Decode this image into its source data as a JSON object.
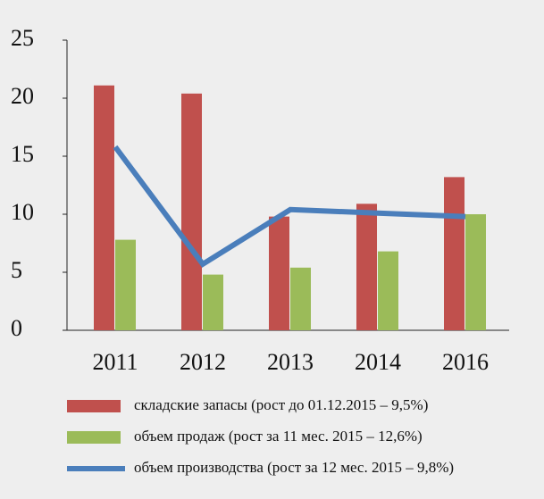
{
  "chart_data": {
    "type": "bar_line",
    "categories": [
      "2011",
      "2012",
      "2013",
      "2014",
      "2016"
    ],
    "series": [
      {
        "name": "складские запасы (рост до 01.12.2015 – 9,5%)",
        "color": "#c0504d",
        "kind": "bar",
        "values": [
          21.1,
          20.4,
          9.8,
          10.9,
          13.2
        ]
      },
      {
        "name": "объем продаж (рост за 11 мес. 2015 – 12,6%)",
        "color": "#9bbb59",
        "kind": "bar",
        "values": [
          7.8,
          4.8,
          5.4,
          6.8,
          10.0
        ]
      },
      {
        "name": "объем производства (рост за 12 мес. 2015 – 9,8%)",
        "color": "#4a7ebb",
        "kind": "line",
        "values": [
          15.8,
          5.7,
          10.4,
          10.1,
          9.8
        ]
      }
    ],
    "ylim": [
      0,
      25
    ],
    "yticks": [
      0,
      5,
      10,
      15,
      20,
      25
    ],
    "grid": false
  }
}
